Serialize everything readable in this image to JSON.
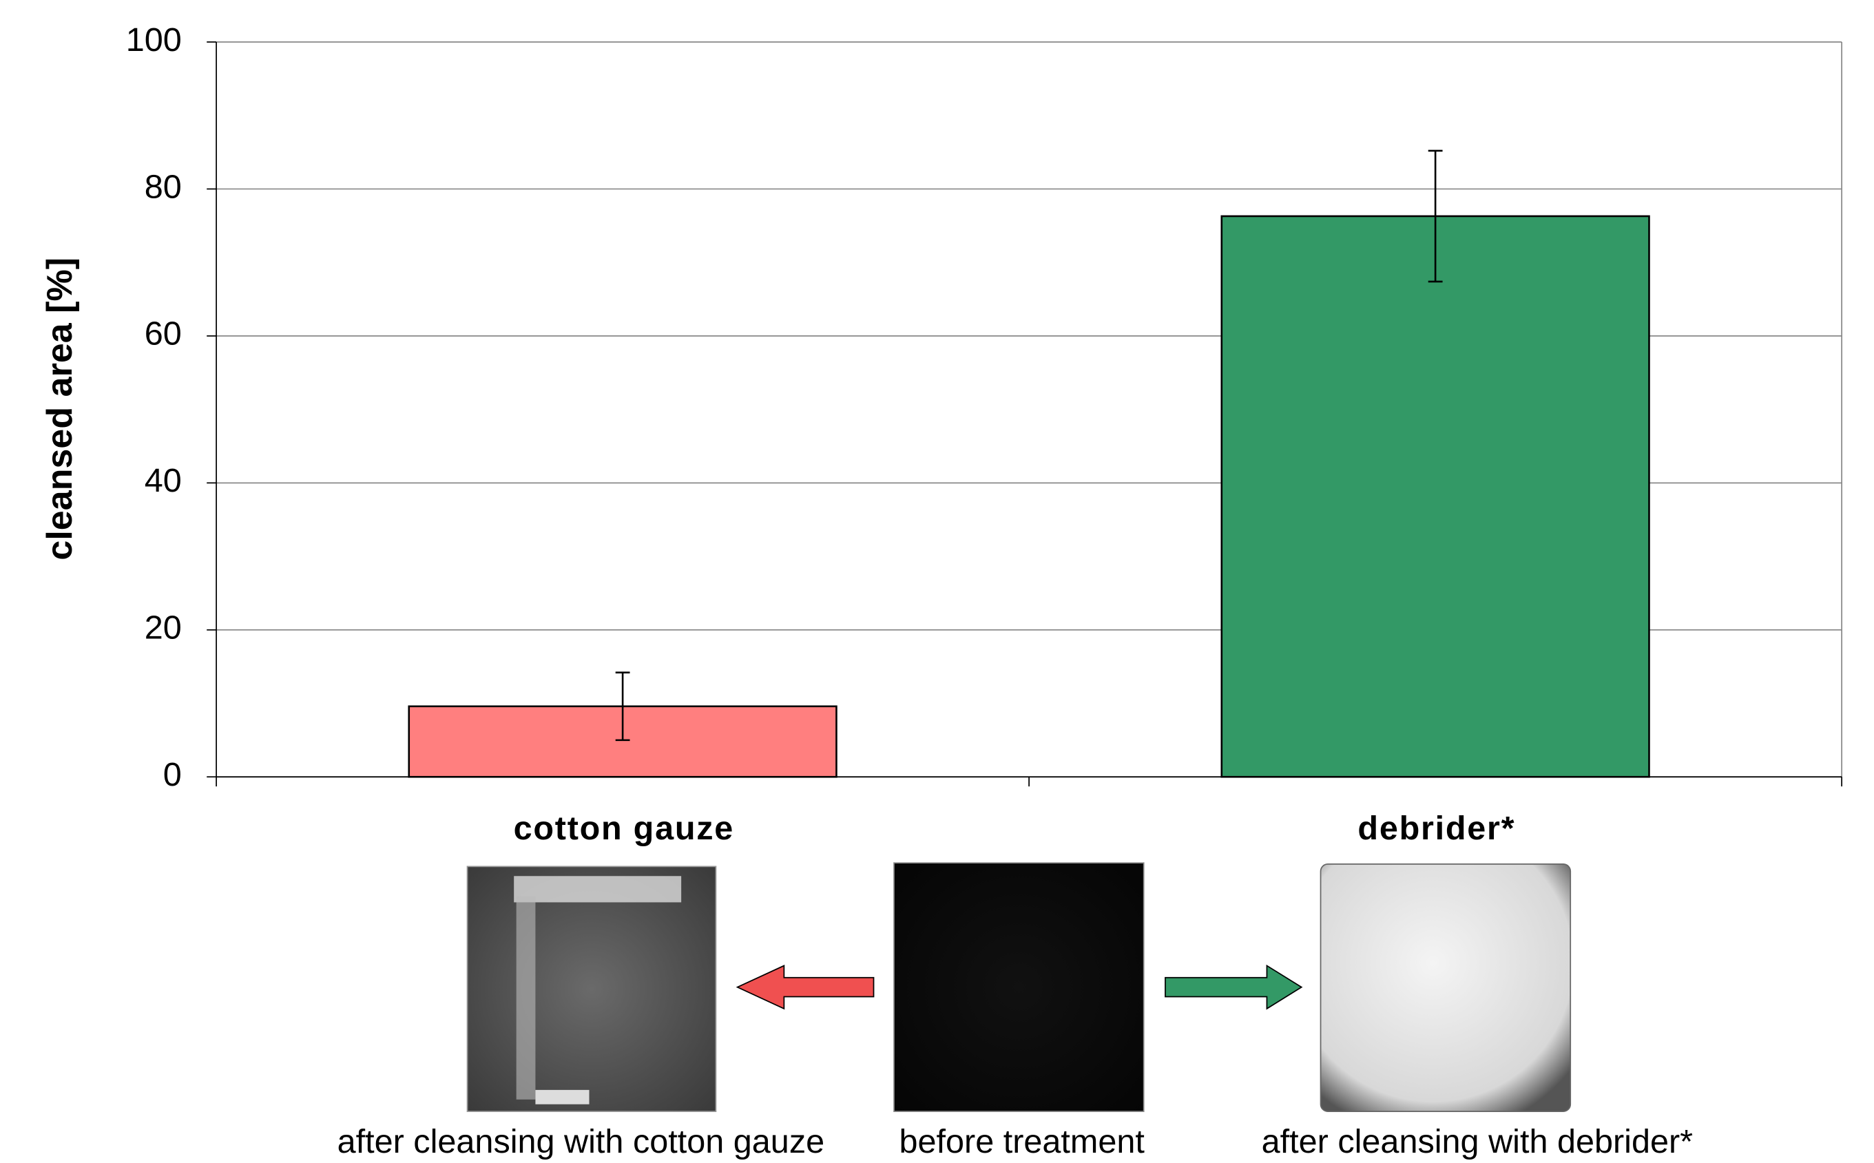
{
  "chart_data": {
    "type": "bar",
    "y_label": "cleansed area [%]",
    "categories": [
      "cotton gauze",
      "debrider*"
    ],
    "values": [
      9.6,
      76.3
    ],
    "errors": [
      4.6,
      8.9
    ],
    "colors": [
      "#ff7f7f",
      "#339966"
    ],
    "ylim": [
      0,
      100
    ],
    "yticks": [
      0,
      20,
      40,
      60,
      80,
      100
    ],
    "grid": true,
    "image_captions": [
      "after cleansing with cotton gauze",
      "before treatment",
      "after cleansing with debrider*"
    ]
  }
}
